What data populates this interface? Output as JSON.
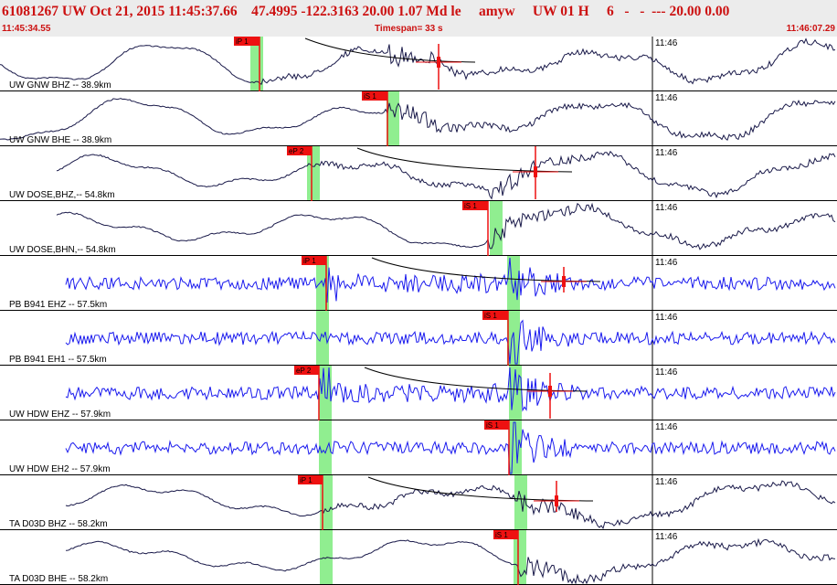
{
  "header": {
    "title": "61081267 UW Oct 21, 2015 11:45:37.66    47.4995 -122.3163 20.00 1.07 Md le     amyw     UW 01 H     6   -   -  --- 20.00 0.00",
    "start_time": "11:45:34.55",
    "timespan": "Timespan=  33 s",
    "end_time": "11:46:07.29"
  },
  "colors": {
    "header_background": "#ececec",
    "header_text": "#cc1111",
    "broadband_trace": "#1a1a4a",
    "shortperiod_trace": "#1a1aee",
    "pick_flag": "#ee1111",
    "pick_window": "#90ee90",
    "separator": "#000000"
  },
  "panels": [
    {
      "label": "UW GNW BHZ -- 38.9km",
      "minute_label": "11:46",
      "pick_label": "iP 1",
      "trace_type": "broadband",
      "kind": "P",
      "has_residual": true
    },
    {
      "label": "UW GNW BHE -- 38.9km",
      "minute_label": "11:46",
      "pick_label": "iS 1",
      "trace_type": "broadband",
      "kind": "S",
      "has_residual": false
    },
    {
      "label": "UW DOSE,BHZ,-- 54.8km",
      "minute_label": "11:46",
      "pick_label": "eP 2",
      "trace_type": "broadband",
      "kind": "P",
      "has_residual": true
    },
    {
      "label": "UW DOSE,BHN,-- 54.8km",
      "minute_label": "11:46",
      "pick_label": "iS 1",
      "trace_type": "broadband",
      "kind": "S",
      "has_residual": false
    },
    {
      "label": "PB B941 EHZ -- 57.5km",
      "minute_label": "11:46",
      "pick_label": "iP 1",
      "trace_type": "shortperiod",
      "kind": "P",
      "has_residual": true
    },
    {
      "label": "PB B941 EH1 -- 57.5km",
      "minute_label": "11:46",
      "pick_label": "iS 1",
      "trace_type": "shortperiod",
      "kind": "S",
      "has_residual": false
    },
    {
      "label": "UW HDW EHZ -- 57.9km",
      "minute_label": "11:46",
      "pick_label": "eP 2",
      "trace_type": "shortperiod",
      "kind": "P",
      "has_residual": true
    },
    {
      "label": "UW HDW EH2 -- 57.9km",
      "minute_label": "11:46",
      "pick_label": "iS 1",
      "trace_type": "shortperiod",
      "kind": "S",
      "has_residual": false
    },
    {
      "label": "TA D03D BHZ -- 58.2km",
      "minute_label": "11:46",
      "pick_label": "iP 1",
      "trace_type": "broadband",
      "kind": "P",
      "has_residual": true
    },
    {
      "label": "TA D03D BHE -- 58.2km",
      "minute_label": "11:46",
      "pick_label": "iS 1",
      "trace_type": "broadband",
      "kind": "S",
      "has_residual": false
    }
  ]
}
